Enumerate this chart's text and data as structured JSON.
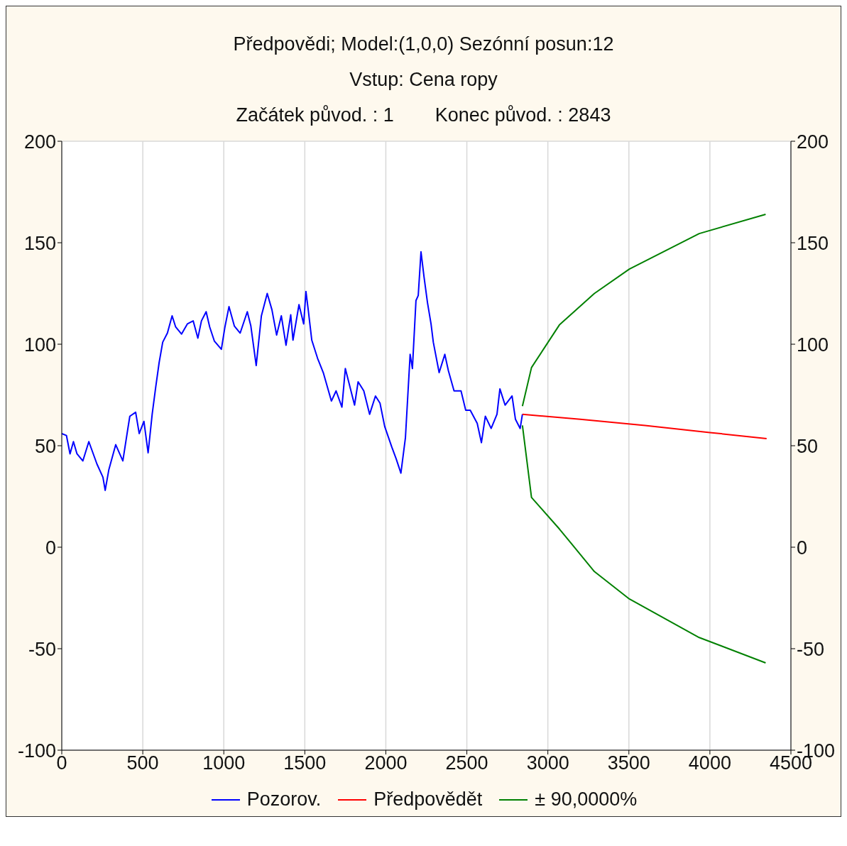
{
  "chart_data": {
    "type": "line",
    "title": "Předpovědi; Model:(1,0,0) Sezónní posun:12",
    "subtitle": "Vstup: Cena ropy",
    "annotations": [
      "Začátek původ. : 1",
      "Konec původ. : 2843"
    ],
    "xlim": [
      0,
      4500
    ],
    "xticks": [
      0,
      500,
      1000,
      1500,
      2000,
      2500,
      3000,
      3500,
      4000,
      4500
    ],
    "ylim": [
      -100,
      200
    ],
    "yticks": [
      -100,
      -50,
      0,
      50,
      100,
      150,
      200
    ],
    "y2lim": [
      -100,
      200
    ],
    "y2ticks": [
      -100,
      -50,
      0,
      50,
      100,
      150,
      200
    ],
    "grid": true,
    "legend": "bottom",
    "marker": "none",
    "line_style": "solid",
    "series": [
      {
        "name": "Pozorov.",
        "color": "#0000ff",
        "x": [
          0,
          29,
          51,
          72,
          94,
          130,
          167,
          217,
          254,
          268,
          290,
          333,
          377,
          406,
          420,
          456,
          478,
          507,
          533,
          558,
          580,
          601,
          623,
          652,
          681,
          703,
          739,
          775,
          811,
          840,
          862,
          891,
          913,
          942,
          985,
          1007,
          1032,
          1065,
          1101,
          1145,
          1167,
          1200,
          1232,
          1268,
          1297,
          1326,
          1355,
          1384,
          1413,
          1427,
          1464,
          1493,
          1507,
          1521,
          1543,
          1579,
          1614,
          1664,
          1693,
          1729,
          1750,
          1807,
          1829,
          1864,
          1900,
          1936,
          1964,
          1993,
          2036,
          2064,
          2093,
          2121,
          2150,
          2164,
          2186,
          2200,
          2217,
          2236,
          2257,
          2279,
          2293,
          2329,
          2364,
          2386,
          2421,
          2464,
          2493,
          2521,
          2564,
          2590,
          2614,
          2650,
          2686,
          2704,
          2736,
          2779,
          2800,
          2829,
          2843
        ],
        "values": [
          56,
          55,
          46,
          52,
          46,
          42.5,
          52,
          41,
          34.5,
          28,
          38,
          50.5,
          42.5,
          57.5,
          64.5,
          66.5,
          56,
          62,
          46.5,
          65.5,
          79,
          91,
          101,
          105.5,
          114,
          108.5,
          105,
          110,
          111.5,
          103,
          111.5,
          116,
          108.5,
          101.5,
          97.5,
          108.5,
          118.5,
          109,
          105.5,
          116,
          109,
          89.5,
          114,
          125,
          117,
          104.5,
          114,
          99.5,
          114.5,
          102,
          119.5,
          110,
          126,
          117,
          102,
          93,
          86,
          72,
          77,
          69,
          88,
          70,
          81.5,
          77,
          65.5,
          74.5,
          71,
          59.5,
          49.5,
          43.5,
          36.5,
          54,
          95,
          88,
          121.5,
          124,
          145.5,
          133,
          120.5,
          110,
          101,
          86,
          95,
          87,
          77,
          77,
          67.5,
          67.5,
          61,
          51.5,
          64.5,
          58.5,
          65.5,
          78,
          70,
          74.5,
          63,
          58.5,
          65.5
        ]
      },
      {
        "name": "Předpovědět",
        "color": "#ff0000",
        "x": [
          2843,
          3200,
          3600,
          4000,
          4350
        ],
        "values": [
          65.5,
          63,
          60,
          56.5,
          53.5
        ]
      },
      {
        "name": "± 90,0000%",
        "color": "#008000",
        "x": [
          2843,
          2899,
          3071,
          3287,
          3503,
          3934,
          4344
        ],
        "values": [
          69.5,
          88.5,
          109.5,
          125,
          137,
          154.5,
          164
        ]
      },
      {
        "color": "#008000",
        "x": [
          2843,
          2899,
          3071,
          3287,
          3503,
          3934,
          4344
        ],
        "values": [
          60,
          24.5,
          9,
          -12,
          -25.5,
          -44.5,
          -57
        ]
      }
    ]
  }
}
